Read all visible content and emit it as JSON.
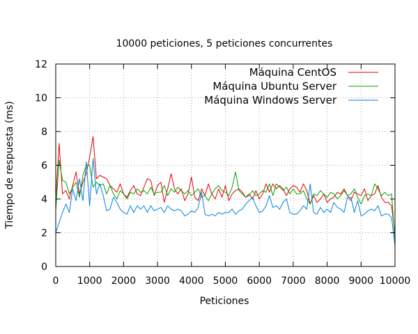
{
  "chart_data": {
    "type": "line",
    "title": "10000 peticiones, 5 peticiones concurrentes",
    "xlabel": "Peticiones",
    "ylabel": "Tiempo de respuesta (ms)",
    "xlim": [
      0,
      10000
    ],
    "ylim": [
      0,
      12
    ],
    "x_ticks": [
      0,
      1000,
      2000,
      3000,
      4000,
      5000,
      6000,
      7000,
      8000,
      9000,
      10000
    ],
    "y_ticks": [
      0,
      2,
      4,
      6,
      8,
      10,
      12
    ],
    "grid": "dotted",
    "legend_position": "top-right",
    "series": [
      {
        "name": "Máquina CentOS",
        "color": "#e00000",
        "x": [
          0,
          100,
          200,
          300,
          400,
          500,
          600,
          700,
          800,
          900,
          1000,
          1100,
          1200,
          1300,
          1400,
          1500,
          1600,
          1700,
          1800,
          1900,
          2000,
          2100,
          2200,
          2300,
          2400,
          2500,
          2600,
          2700,
          2800,
          2900,
          3000,
          3100,
          3200,
          3300,
          3400,
          3500,
          3600,
          3700,
          3800,
          3900,
          4000,
          4100,
          4200,
          4300,
          4400,
          4500,
          4600,
          4700,
          4800,
          4900,
          5000,
          5100,
          5200,
          5300,
          5400,
          5500,
          5600,
          5700,
          5800,
          5900,
          6000,
          6100,
          6200,
          6300,
          6400,
          6500,
          6600,
          6700,
          6800,
          6900,
          7000,
          7100,
          7200,
          7300,
          7400,
          7500,
          7600,
          7700,
          7800,
          7900,
          8000,
          8100,
          8200,
          8300,
          8400,
          8500,
          8600,
          8700,
          8800,
          8900,
          9000,
          9100,
          9200,
          9300,
          9400,
          9500,
          9600,
          9700,
          9800,
          9900,
          10000
        ],
        "y": [
          4.0,
          7.3,
          4.3,
          4.5,
          4.0,
          4.8,
          5.6,
          4.3,
          5.0,
          5.5,
          6.5,
          7.7,
          5.2,
          5.4,
          5.3,
          5.2,
          4.8,
          4.6,
          4.4,
          4.9,
          4.3,
          4.1,
          4.5,
          4.8,
          4.3,
          4.2,
          4.7,
          5.2,
          5.1,
          4.2,
          4.8,
          5.0,
          3.8,
          4.6,
          5.5,
          4.6,
          4.3,
          4.6,
          3.9,
          4.3,
          5.3,
          4.1,
          3.9,
          4.6,
          4.2,
          4.9,
          4.3,
          4.0,
          4.6,
          4.1,
          4.8,
          3.9,
          4.3,
          4.5,
          4.6,
          4.4,
          4.1,
          4.3,
          4.0,
          4.5,
          4.0,
          4.3,
          4.9,
          4.4,
          4.9,
          4.6,
          4.8,
          4.6,
          4.2,
          4.6,
          4.8,
          4.7,
          4.4,
          4.9,
          4.5,
          3.7,
          4.2,
          3.8,
          4.0,
          4.3,
          3.8,
          4.0,
          4.1,
          4.4,
          4.3,
          4.6,
          4.2,
          3.9,
          4.4,
          4.3,
          4.2,
          4.6,
          3.9,
          4.2,
          4.3,
          4.8,
          4.1,
          3.8,
          3.8,
          3.6,
          1.9
        ]
      },
      {
        "name": "Máquina Ubuntu Server",
        "color": "#00a000",
        "x": [
          0,
          100,
          200,
          300,
          400,
          500,
          600,
          700,
          800,
          900,
          1000,
          1100,
          1200,
          1300,
          1400,
          1500,
          1600,
          1700,
          1800,
          1900,
          2000,
          2100,
          2200,
          2300,
          2400,
          2500,
          2600,
          2700,
          2800,
          2900,
          3000,
          3100,
          3200,
          3300,
          3400,
          3500,
          3600,
          3700,
          3800,
          3900,
          4000,
          4100,
          4200,
          4300,
          4400,
          4500,
          4600,
          4700,
          4800,
          4900,
          5000,
          5100,
          5200,
          5300,
          5400,
          5500,
          5600,
          5700,
          5800,
          5900,
          6000,
          6100,
          6200,
          6300,
          6400,
          6500,
          6600,
          6700,
          6800,
          6900,
          7000,
          7100,
          7200,
          7300,
          7400,
          7500,
          7600,
          7700,
          7800,
          7900,
          8000,
          8100,
          8200,
          8300,
          8400,
          8500,
          8600,
          8700,
          8800,
          8900,
          9000,
          9100,
          9200,
          9300,
          9400,
          9500,
          9600,
          9700,
          9800,
          9900,
          10000
        ],
        "y": [
          3.3,
          6.3,
          5.1,
          5.0,
          4.3,
          4.7,
          5.0,
          4.1,
          5.4,
          6.0,
          6.0,
          4.7,
          5.0,
          4.8,
          4.9,
          4.3,
          4.8,
          4.3,
          4.0,
          4.5,
          4.3,
          4.0,
          4.4,
          4.3,
          4.6,
          4.4,
          4.5,
          4.3,
          4.7,
          4.3,
          4.4,
          4.4,
          4.8,
          4.2,
          4.6,
          4.4,
          4.7,
          4.5,
          4.3,
          4.5,
          4.2,
          4.4,
          4.6,
          4.1,
          4.2,
          3.9,
          4.3,
          4.6,
          4.8,
          4.5,
          4.4,
          4.2,
          4.7,
          5.6,
          4.5,
          4.3,
          4.1,
          4.2,
          4.5,
          4.2,
          4.3,
          4.5,
          4.4,
          4.9,
          4.2,
          4.9,
          4.7,
          4.5,
          4.7,
          4.3,
          4.6,
          4.3,
          4.3,
          4.5,
          4.0,
          3.7,
          4.3,
          4.2,
          4.5,
          4.3,
          4.1,
          4.4,
          4.3,
          4.0,
          4.2,
          4.5,
          4.2,
          4.3,
          4.6,
          4.1,
          3.7,
          4.2,
          4.3,
          4.2,
          4.9,
          4.6,
          4.2,
          4.4,
          4.2,
          4.3,
          1.5
        ]
      },
      {
        "name": "Máquina Windows Server",
        "color": "#0080e0",
        "x": [
          0,
          100,
          200,
          300,
          400,
          500,
          600,
          700,
          800,
          900,
          1000,
          1100,
          1200,
          1300,
          1400,
          1500,
          1600,
          1700,
          1800,
          1900,
          2000,
          2100,
          2200,
          2300,
          2400,
          2500,
          2600,
          2700,
          2800,
          2900,
          3000,
          3100,
          3200,
          3300,
          3400,
          3500,
          3600,
          3700,
          3800,
          3900,
          4000,
          4100,
          4200,
          4300,
          4400,
          4500,
          4600,
          4700,
          4800,
          4900,
          5000,
          5100,
          5200,
          5300,
          5400,
          5500,
          5600,
          5700,
          5800,
          5900,
          6000,
          6100,
          6200,
          6300,
          6400,
          6500,
          6600,
          6700,
          6800,
          6900,
          7000,
          7100,
          7200,
          7300,
          7400,
          7500,
          7600,
          7700,
          7800,
          7900,
          8000,
          8100,
          8200,
          8300,
          8400,
          8500,
          8600,
          8700,
          8800,
          8900,
          9000,
          9100,
          9200,
          9300,
          9400,
          9500,
          9600,
          9700,
          9800,
          9900,
          10000
        ],
        "y": [
          2.0,
          2.6,
          3.2,
          3.7,
          3.2,
          4.6,
          3.9,
          5.2,
          3.9,
          6.2,
          3.6,
          6.4,
          4.3,
          4.9,
          4.2,
          3.3,
          3.4,
          4.1,
          3.8,
          3.4,
          3.2,
          3.1,
          3.6,
          3.2,
          3.6,
          3.4,
          3.6,
          3.2,
          3.6,
          3.3,
          3.4,
          3.5,
          3.2,
          3.6,
          3.4,
          3.3,
          3.4,
          3.3,
          3.0,
          3.1,
          3.3,
          3.2,
          3.5,
          4.4,
          3.1,
          3.0,
          3.1,
          3.0,
          3.2,
          3.1,
          3.2,
          3.2,
          3.4,
          3.1,
          3.3,
          3.4,
          3.7,
          3.9,
          4.1,
          3.6,
          3.2,
          3.3,
          3.6,
          4.2,
          3.5,
          3.6,
          3.4,
          3.8,
          4.0,
          3.2,
          3.1,
          3.1,
          3.3,
          3.6,
          3.4,
          4.9,
          3.2,
          3.1,
          3.5,
          3.2,
          3.4,
          3.2,
          3.8,
          3.5,
          3.4,
          3.2,
          4.1,
          4.1,
          3.2,
          3.9,
          3.0,
          3.1,
          3.3,
          3.4,
          3.3,
          3.6,
          3.0,
          3.1,
          3.1,
          2.9,
          1.2
        ]
      }
    ]
  }
}
